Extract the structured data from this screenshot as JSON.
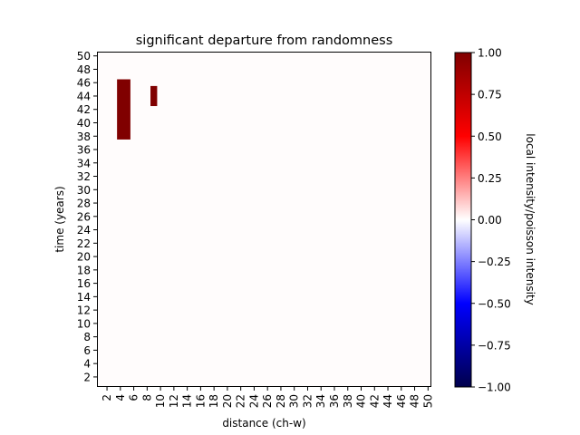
{
  "chart_data": {
    "type": "heatmap",
    "title": "significant departure from randomness",
    "xlabel": "distance (ch-w)",
    "ylabel": "time (years)",
    "x_ticks": [
      2,
      4,
      6,
      8,
      10,
      12,
      14,
      16,
      18,
      20,
      22,
      24,
      26,
      28,
      30,
      32,
      34,
      36,
      38,
      40,
      42,
      44,
      46,
      48,
      50
    ],
    "y_ticks": [
      2,
      4,
      6,
      8,
      10,
      12,
      14,
      16,
      18,
      20,
      22,
      24,
      26,
      28,
      30,
      32,
      34,
      36,
      38,
      40,
      42,
      44,
      46,
      48,
      50
    ],
    "xlim": [
      1,
      51
    ],
    "ylim": [
      1,
      51
    ],
    "background_value": 0.0,
    "cells": [
      {
        "x": [
          4,
          5
        ],
        "y": [
          38,
          46
        ],
        "value": 1.0
      },
      {
        "x": [
          9
        ],
        "y": [
          43,
          45
        ],
        "value": 1.0
      }
    ],
    "colorbar": {
      "label": "local intensity/poisson intensity",
      "colormap": "seismic",
      "vmin": -1.0,
      "vmax": 1.0,
      "ticks": [
        "1.00",
        "0.75",
        "0.50",
        "0.25",
        "0.00",
        "−0.25",
        "−0.50",
        "−0.75",
        "−1.00"
      ],
      "colors": [
        "#00004c",
        "#0000ff",
        "#ffffff",
        "#ff0000",
        "#800000"
      ]
    }
  }
}
